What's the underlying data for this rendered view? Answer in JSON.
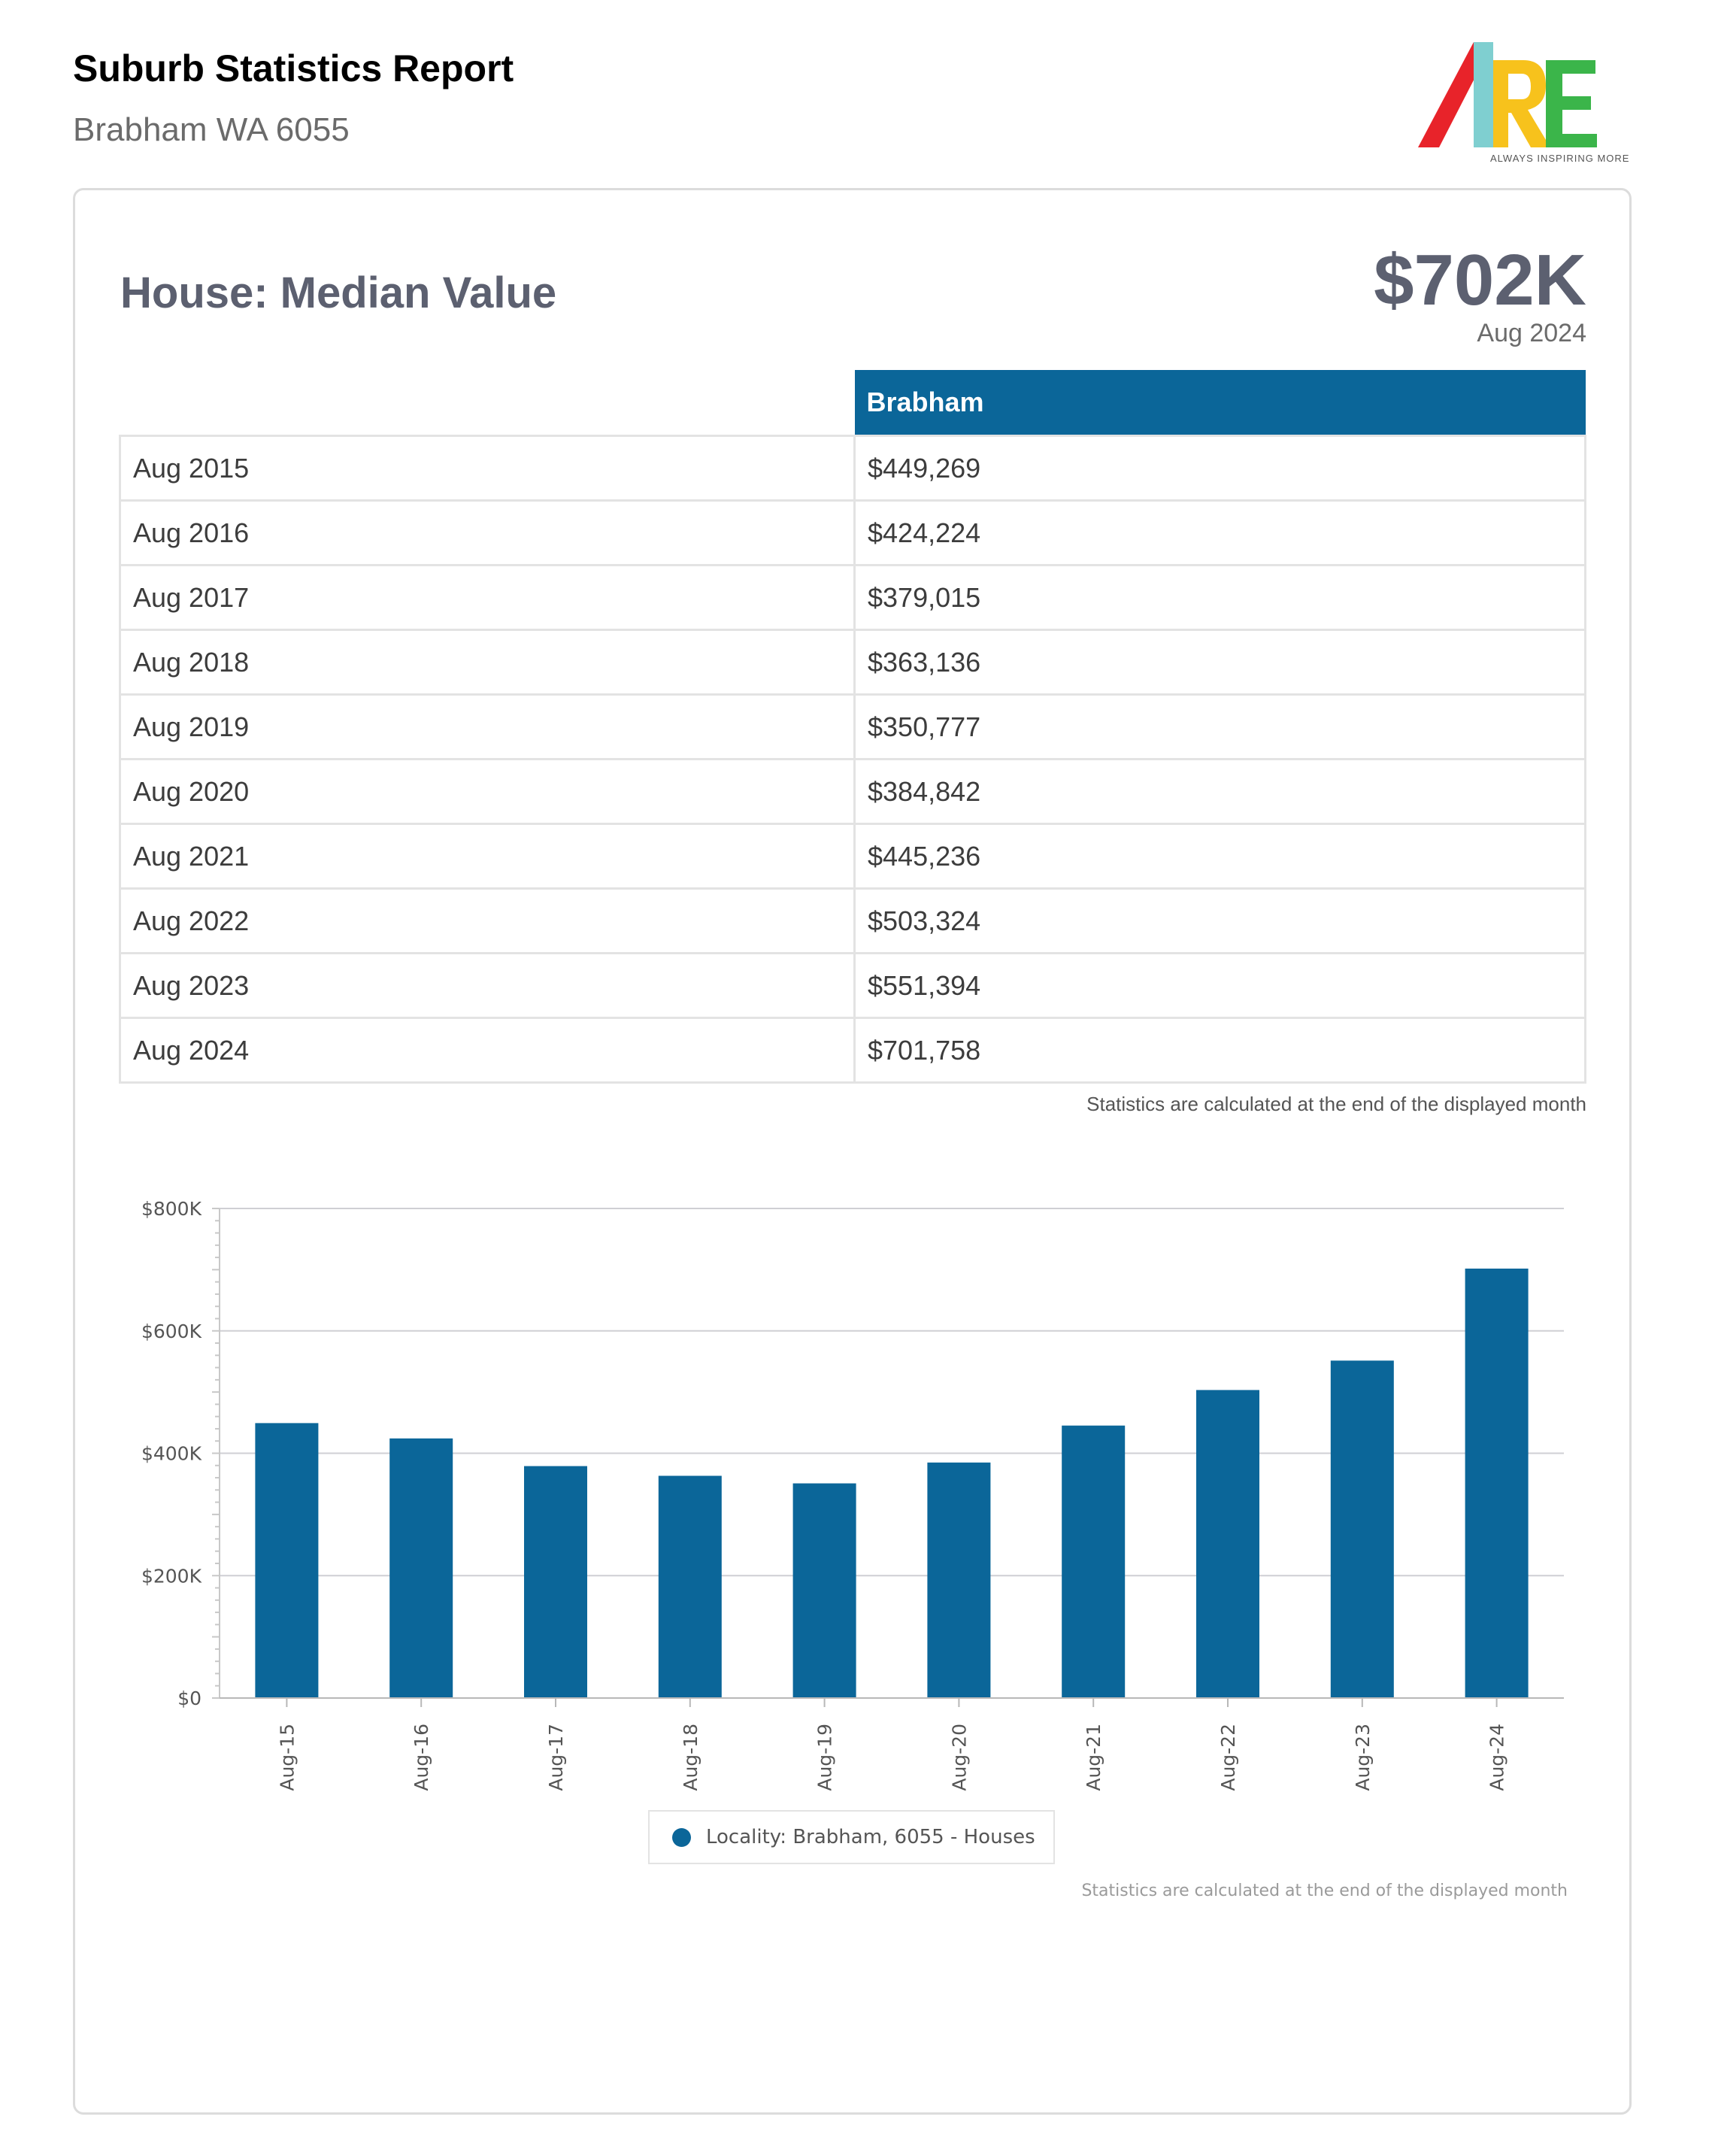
{
  "header": {
    "title": "Suburb Statistics Report",
    "subtitle": "Brabham WA 6055",
    "logo_text": "ARE",
    "logo_tagline": "ALWAYS INSPIRING MORE"
  },
  "section": {
    "title": "House: Median Value",
    "headline_value": "$702K",
    "headline_date": "Aug 2024"
  },
  "table": {
    "column_header": "Brabham",
    "rows": [
      {
        "period": "Aug 2015",
        "value": "$449,269"
      },
      {
        "period": "Aug 2016",
        "value": "$424,224"
      },
      {
        "period": "Aug 2017",
        "value": "$379,015"
      },
      {
        "period": "Aug 2018",
        "value": "$363,136"
      },
      {
        "period": "Aug 2019",
        "value": "$350,777"
      },
      {
        "period": "Aug 2020",
        "value": "$384,842"
      },
      {
        "period": "Aug 2021",
        "value": "$445,236"
      },
      {
        "period": "Aug 2022",
        "value": "$503,324"
      },
      {
        "period": "Aug 2023",
        "value": "$551,394"
      },
      {
        "period": "Aug 2024",
        "value": "$701,758"
      }
    ],
    "note": "Statistics are calculated at the end of the displayed month"
  },
  "colors": {
    "accent": "#0b6699",
    "title_gray": "#5c6070",
    "logo_red": "#e8232a",
    "logo_cyan": "#7fcfd0",
    "logo_yellow": "#f7c21c",
    "logo_green": "#3bb54a"
  },
  "chart_data": {
    "type": "bar",
    "categories": [
      "Aug-15",
      "Aug-16",
      "Aug-17",
      "Aug-18",
      "Aug-19",
      "Aug-20",
      "Aug-21",
      "Aug-22",
      "Aug-23",
      "Aug-24"
    ],
    "series": [
      {
        "name": "Locality: Brabham, 6055 - Houses",
        "values": [
          449269,
          424224,
          379015,
          363136,
          350777,
          384842,
          445236,
          503324,
          551394,
          701758
        ]
      }
    ],
    "y_ticks": [
      {
        "value": 0,
        "label": "$0"
      },
      {
        "value": 200000,
        "label": "$200K"
      },
      {
        "value": 400000,
        "label": "$400K"
      },
      {
        "value": 600000,
        "label": "$600K"
      },
      {
        "value": 800000,
        "label": "$800K"
      }
    ],
    "ylim": [
      0,
      800000
    ],
    "grid": true,
    "legend": "bottom",
    "note": "Statistics are calculated at the end of the displayed month"
  }
}
